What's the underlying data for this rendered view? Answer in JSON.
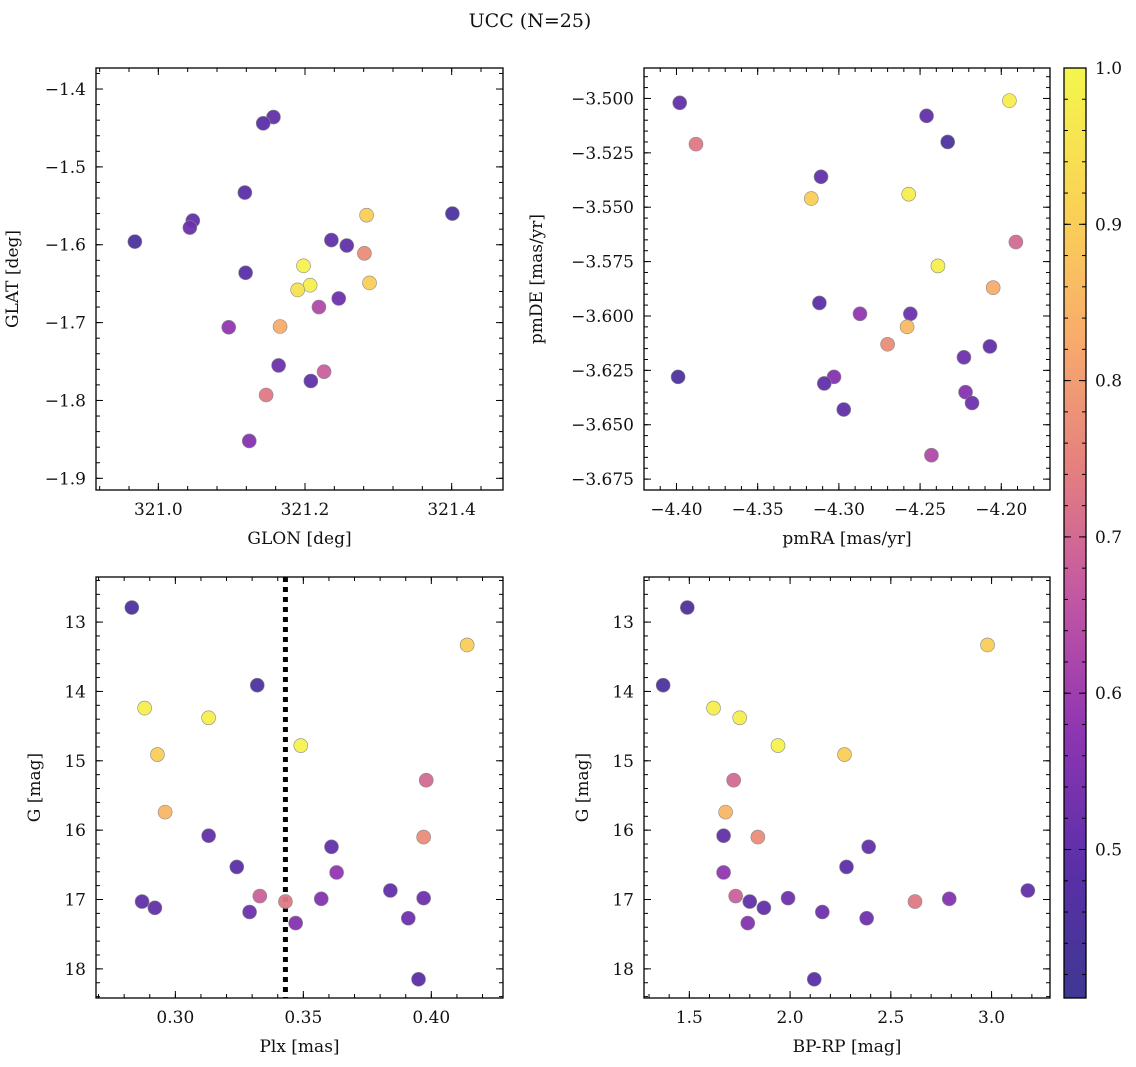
{
  "figure": {
    "title": "UCC (N=25)"
  },
  "colorbar": {
    "range": [
      0.405,
      1.0
    ],
    "ticks": [
      0.5,
      0.6,
      0.7,
      0.8,
      0.9,
      1.0
    ],
    "tick_labels": [
      "0.5",
      "0.6",
      "0.7",
      "0.8",
      "0.9",
      "1.0"
    ],
    "colormap": "plasma",
    "colormap_stops": [
      "#3e3893",
      "#5b2fa8",
      "#8e35b2",
      "#c256a3",
      "#e5807f",
      "#f8ad6b",
      "#fad454",
      "#f3f64d"
    ]
  },
  "chart_data": [
    {
      "type": "scatter",
      "xlabel": "GLON [deg]",
      "ylabel": "GLAT [deg]",
      "xlim": [
        320.915,
        321.47
      ],
      "ylim": [
        -1.915,
        -1.373
      ],
      "xticks": [
        321.0,
        321.2,
        321.4
      ],
      "xtick_labels": [
        "321.0",
        "321.2",
        "321.4"
      ],
      "yticks": [
        -1.4,
        -1.5,
        -1.6,
        -1.7,
        -1.8,
        -1.9
      ],
      "ytick_labels": [
        "−1.4",
        "−1.5",
        "−1.6",
        "−1.7",
        "−1.8",
        "−1.9"
      ],
      "points": [
        {
          "x": 321.157,
          "y": -1.436,
          "c": 0.5
        },
        {
          "x": 321.143,
          "y": -1.444,
          "c": 0.49
        },
        {
          "x": 321.118,
          "y": -1.533,
          "c": 0.49
        },
        {
          "x": 321.047,
          "y": -1.569,
          "c": 0.5
        },
        {
          "x": 321.043,
          "y": -1.578,
          "c": 0.52
        },
        {
          "x": 320.968,
          "y": -1.596,
          "c": 0.45
        },
        {
          "x": 321.119,
          "y": -1.636,
          "c": 0.49
        },
        {
          "x": 321.401,
          "y": -1.56,
          "c": 0.45
        },
        {
          "x": 321.284,
          "y": -1.562,
          "c": 0.9
        },
        {
          "x": 321.236,
          "y": -1.594,
          "c": 0.5
        },
        {
          "x": 321.257,
          "y": -1.601,
          "c": 0.5
        },
        {
          "x": 321.281,
          "y": -1.611,
          "c": 0.77
        },
        {
          "x": 321.198,
          "y": -1.627,
          "c": 0.99
        },
        {
          "x": 321.207,
          "y": -1.652,
          "c": 0.98
        },
        {
          "x": 321.19,
          "y": -1.658,
          "c": 0.95
        },
        {
          "x": 321.288,
          "y": -1.649,
          "c": 0.9
        },
        {
          "x": 321.246,
          "y": -1.669,
          "c": 0.52
        },
        {
          "x": 321.219,
          "y": -1.68,
          "c": 0.63
        },
        {
          "x": 321.096,
          "y": -1.706,
          "c": 0.58
        },
        {
          "x": 321.166,
          "y": -1.705,
          "c": 0.83
        },
        {
          "x": 321.164,
          "y": -1.755,
          "c": 0.52
        },
        {
          "x": 321.226,
          "y": -1.763,
          "c": 0.68
        },
        {
          "x": 321.208,
          "y": -1.775,
          "c": 0.5
        },
        {
          "x": 321.147,
          "y": -1.793,
          "c": 0.73
        },
        {
          "x": 321.124,
          "y": -1.852,
          "c": 0.56
        }
      ]
    },
    {
      "type": "scatter",
      "xlabel": "pmRA [mas/yr]",
      "ylabel": "pmDE [mas/yr]",
      "xlim": [
        -4.42,
        -4.17
      ],
      "ylim": [
        -3.68,
        -3.486
      ],
      "xticks": [
        -4.4,
        -4.35,
        -4.3,
        -4.25,
        -4.2
      ],
      "xtick_labels": [
        "−4.40",
        "−4.35",
        "−4.30",
        "−4.25",
        "−4.20"
      ],
      "yticks": [
        -3.5,
        -3.525,
        -3.55,
        -3.575,
        -3.6,
        -3.625,
        -3.65,
        -3.675
      ],
      "ytick_labels": [
        "−3.500",
        "−3.525",
        "−3.550",
        "−3.575",
        "−3.600",
        "−3.625",
        "−3.650",
        "−3.675"
      ],
      "points": [
        {
          "x": -4.398,
          "y": -3.502,
          "c": 0.5
        },
        {
          "x": -4.388,
          "y": -3.521,
          "c": 0.73
        },
        {
          "x": -4.246,
          "y": -3.508,
          "c": 0.5
        },
        {
          "x": -4.233,
          "y": -3.52,
          "c": 0.45
        },
        {
          "x": -4.195,
          "y": -3.501,
          "c": 0.98
        },
        {
          "x": -4.311,
          "y": -3.536,
          "c": 0.5
        },
        {
          "x": -4.317,
          "y": -3.546,
          "c": 0.9
        },
        {
          "x": -4.257,
          "y": -3.544,
          "c": 0.98
        },
        {
          "x": -4.191,
          "y": -3.566,
          "c": 0.7
        },
        {
          "x": -4.239,
          "y": -3.577,
          "c": 0.98
        },
        {
          "x": -4.205,
          "y": -3.587,
          "c": 0.83
        },
        {
          "x": -4.312,
          "y": -3.594,
          "c": 0.49
        },
        {
          "x": -4.287,
          "y": -3.599,
          "c": 0.58
        },
        {
          "x": -4.256,
          "y": -3.599,
          "c": 0.52
        },
        {
          "x": -4.258,
          "y": -3.605,
          "c": 0.86
        },
        {
          "x": -4.27,
          "y": -3.613,
          "c": 0.77
        },
        {
          "x": -4.207,
          "y": -3.614,
          "c": 0.5
        },
        {
          "x": -4.223,
          "y": -3.619,
          "c": 0.52
        },
        {
          "x": -4.399,
          "y": -3.628,
          "c": 0.45
        },
        {
          "x": -4.303,
          "y": -3.628,
          "c": 0.56
        },
        {
          "x": -4.309,
          "y": -3.631,
          "c": 0.5
        },
        {
          "x": -4.222,
          "y": -3.635,
          "c": 0.56
        },
        {
          "x": -4.218,
          "y": -3.64,
          "c": 0.52
        },
        {
          "x": -4.297,
          "y": -3.643,
          "c": 0.5
        },
        {
          "x": -4.243,
          "y": -3.664,
          "c": 0.63
        }
      ]
    },
    {
      "type": "scatter",
      "xlabel": "Plx [mas]",
      "ylabel": "G [mag]",
      "xlim": [
        0.269,
        0.428
      ],
      "ylim": [
        18.42,
        12.35
      ],
      "y_inverted": true,
      "xticks": [
        0.3,
        0.35,
        0.4
      ],
      "xtick_labels": [
        "0.30",
        "0.35",
        "0.40"
      ],
      "yticks": [
        13,
        14,
        15,
        16,
        17,
        18
      ],
      "ytick_labels": [
        "13",
        "14",
        "15",
        "16",
        "17",
        "18"
      ],
      "vline": {
        "x": 0.343,
        "style": "dotted"
      },
      "points": [
        {
          "x": 0.283,
          "y": 12.79,
          "c": 0.45
        },
        {
          "x": 0.414,
          "y": 13.33,
          "c": 0.9
        },
        {
          "x": 0.332,
          "y": 13.91,
          "c": 0.45
        },
        {
          "x": 0.288,
          "y": 14.24,
          "c": 0.98
        },
        {
          "x": 0.313,
          "y": 14.38,
          "c": 0.98
        },
        {
          "x": 0.349,
          "y": 14.78,
          "c": 0.99
        },
        {
          "x": 0.293,
          "y": 14.91,
          "c": 0.9
        },
        {
          "x": 0.398,
          "y": 15.28,
          "c": 0.7
        },
        {
          "x": 0.296,
          "y": 15.74,
          "c": 0.85
        },
        {
          "x": 0.313,
          "y": 16.08,
          "c": 0.5
        },
        {
          "x": 0.397,
          "y": 16.1,
          "c": 0.77
        },
        {
          "x": 0.361,
          "y": 16.24,
          "c": 0.5
        },
        {
          "x": 0.324,
          "y": 16.53,
          "c": 0.49
        },
        {
          "x": 0.363,
          "y": 16.61,
          "c": 0.58
        },
        {
          "x": 0.384,
          "y": 16.87,
          "c": 0.5
        },
        {
          "x": 0.333,
          "y": 16.95,
          "c": 0.68
        },
        {
          "x": 0.397,
          "y": 16.98,
          "c": 0.52
        },
        {
          "x": 0.357,
          "y": 16.99,
          "c": 0.56
        },
        {
          "x": 0.287,
          "y": 17.03,
          "c": 0.5
        },
        {
          "x": 0.343,
          "y": 17.03,
          "c": 0.73
        },
        {
          "x": 0.292,
          "y": 17.12,
          "c": 0.5
        },
        {
          "x": 0.329,
          "y": 17.18,
          "c": 0.52
        },
        {
          "x": 0.391,
          "y": 17.27,
          "c": 0.52
        },
        {
          "x": 0.347,
          "y": 17.34,
          "c": 0.56
        },
        {
          "x": 0.395,
          "y": 18.15,
          "c": 0.49
        }
      ]
    },
    {
      "type": "scatter",
      "xlabel": "BP-RP [mag]",
      "ylabel": "G [mag]",
      "xlim": [
        1.275,
        3.29
      ],
      "ylim": [
        18.42,
        12.35
      ],
      "y_inverted": true,
      "xticks": [
        1.5,
        2.0,
        2.5,
        3.0
      ],
      "xtick_labels": [
        "1.5",
        "2.0",
        "2.5",
        "3.0"
      ],
      "yticks": [
        13,
        14,
        15,
        16,
        17,
        18
      ],
      "ytick_labels": [
        "13",
        "14",
        "15",
        "16",
        "17",
        "18"
      ],
      "points": [
        {
          "x": 1.49,
          "y": 12.79,
          "c": 0.45
        },
        {
          "x": 2.98,
          "y": 13.33,
          "c": 0.9
        },
        {
          "x": 1.37,
          "y": 13.91,
          "c": 0.45
        },
        {
          "x": 1.62,
          "y": 14.24,
          "c": 0.98
        },
        {
          "x": 1.75,
          "y": 14.38,
          "c": 0.98
        },
        {
          "x": 1.94,
          "y": 14.78,
          "c": 0.99
        },
        {
          "x": 2.27,
          "y": 14.91,
          "c": 0.9
        },
        {
          "x": 1.72,
          "y": 15.28,
          "c": 0.7
        },
        {
          "x": 1.68,
          "y": 15.74,
          "c": 0.85
        },
        {
          "x": 1.67,
          "y": 16.08,
          "c": 0.5
        },
        {
          "x": 1.84,
          "y": 16.1,
          "c": 0.77
        },
        {
          "x": 2.39,
          "y": 16.24,
          "c": 0.5
        },
        {
          "x": 2.28,
          "y": 16.53,
          "c": 0.49
        },
        {
          "x": 1.67,
          "y": 16.61,
          "c": 0.58
        },
        {
          "x": 3.18,
          "y": 16.87,
          "c": 0.5
        },
        {
          "x": 1.73,
          "y": 16.95,
          "c": 0.68
        },
        {
          "x": 1.99,
          "y": 16.98,
          "c": 0.52
        },
        {
          "x": 2.79,
          "y": 16.99,
          "c": 0.56
        },
        {
          "x": 1.8,
          "y": 17.03,
          "c": 0.5
        },
        {
          "x": 2.62,
          "y": 17.03,
          "c": 0.73
        },
        {
          "x": 1.87,
          "y": 17.12,
          "c": 0.5
        },
        {
          "x": 2.16,
          "y": 17.18,
          "c": 0.52
        },
        {
          "x": 2.38,
          "y": 17.27,
          "c": 0.52
        },
        {
          "x": 1.79,
          "y": 17.34,
          "c": 0.56
        },
        {
          "x": 2.12,
          "y": 18.15,
          "c": 0.49
        }
      ]
    }
  ]
}
